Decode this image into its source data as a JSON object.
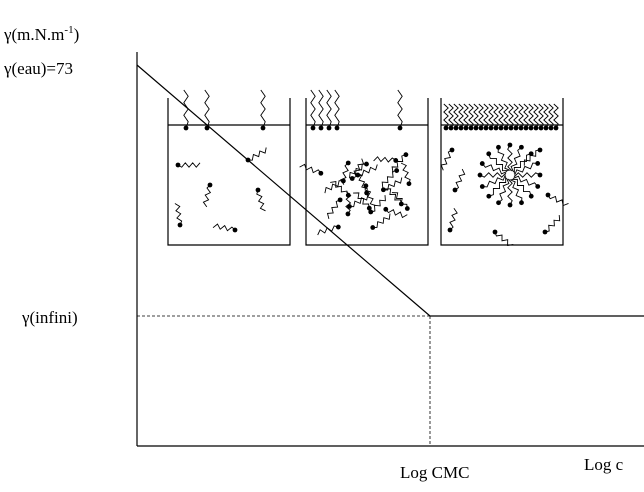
{
  "y_axis_label": {
    "base": "γ(m.N.m",
    "exponent": "-1",
    "close": ")"
  },
  "labels": {
    "water": "γ(eau)=73",
    "infinite": "γ(infini)",
    "cmc": "Log CMC",
    "x_axis": "Log c"
  }
}
